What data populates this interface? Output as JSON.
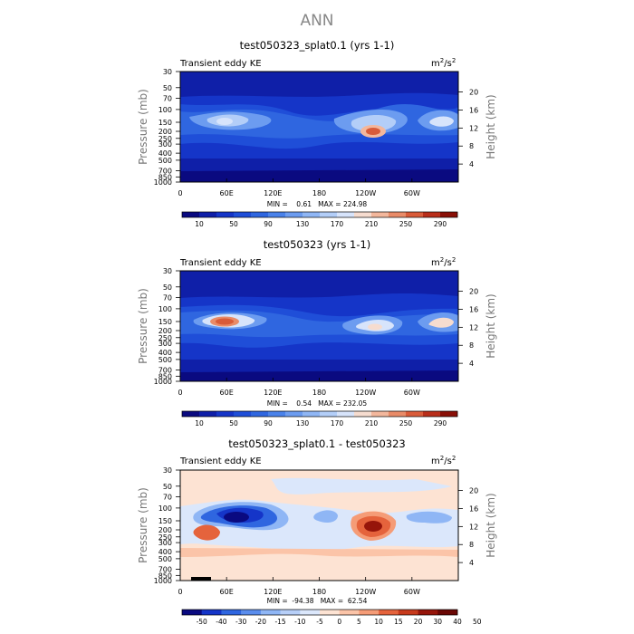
{
  "figure": {
    "title": "ANN"
  },
  "chart_data": [
    {
      "type": "heatmap",
      "title": "test050323_splat0.1 (yrs 1-1)",
      "left_label": "Transient eddy KE",
      "units": "m²/s²",
      "units_base": "m",
      "units_exp1": "2",
      "units_mid": "/s",
      "units_exp2": "2",
      "ylabel": "Pressure (mb)",
      "y2label": "Height (km)",
      "yticks": [
        "30",
        "50",
        "70",
        "100",
        "150",
        "200",
        "250",
        "300",
        "400",
        "500",
        "700",
        "850",
        "1000"
      ],
      "y2ticks": [
        "20",
        "16",
        "12",
        "8",
        "4"
      ],
      "xticks": [
        "0",
        "60E",
        "120E",
        "180",
        "120W",
        "60W"
      ],
      "stats": "MIN =    0.61   MAX = 224.98",
      "min": 0.61,
      "max": 224.98,
      "colorbar": [
        "10",
        "50",
        "90",
        "130",
        "170",
        "210",
        "250",
        "290"
      ],
      "features": [
        {
          "lon": 60,
          "p": 150,
          "value": 150
        },
        {
          "lon": 240,
          "p": 200,
          "value": 210
        },
        {
          "lon": 330,
          "p": 150,
          "value": 160
        }
      ]
    },
    {
      "type": "heatmap",
      "title": "test050323 (yrs 1-1)",
      "left_label": "Transient eddy KE",
      "units": "m²/s²",
      "units_base": "m",
      "units_exp1": "2",
      "units_mid": "/s",
      "units_exp2": "2",
      "ylabel": "Pressure (mb)",
      "y2label": "Height (km)",
      "yticks": [
        "30",
        "50",
        "70",
        "100",
        "150",
        "200",
        "250",
        "300",
        "400",
        "500",
        "700",
        "850",
        "1000"
      ],
      "y2ticks": [
        "20",
        "16",
        "12",
        "8",
        "4"
      ],
      "xticks": [
        "0",
        "60E",
        "120E",
        "180",
        "120W",
        "60W"
      ],
      "stats": "MIN =    0.54   MAX = 232.05",
      "min": 0.54,
      "max": 232.05,
      "colorbar": [
        "10",
        "50",
        "90",
        "130",
        "170",
        "210",
        "250",
        "290"
      ],
      "features": [
        {
          "lon": 55,
          "p": 150,
          "value": 230
        },
        {
          "lon": 240,
          "p": 200,
          "value": 170
        },
        {
          "lon": 330,
          "p": 150,
          "value": 170
        }
      ]
    },
    {
      "type": "heatmap",
      "title": "test050323_splat0.1 - test050323",
      "left_label": "Transient eddy KE",
      "units": "m²/s²",
      "units_base": "m",
      "units_exp1": "2",
      "units_mid": "/s",
      "units_exp2": "2",
      "ylabel": "Pressure (mb)",
      "y2label": "Height (km)",
      "yticks": [
        "30",
        "50",
        "70",
        "100",
        "150",
        "200",
        "250",
        "300",
        "400",
        "500",
        "700",
        "850",
        "1000"
      ],
      "y2ticks": [
        "20",
        "16",
        "12",
        "8",
        "4"
      ],
      "xticks": [
        "0",
        "60E",
        "120E",
        "180",
        "120W",
        "60W"
      ],
      "stats": "MIN =  -94.38   MAX =  62.54",
      "min": -94.38,
      "max": 62.54,
      "colorbar": [
        "-50",
        "-40",
        "-30",
        "-20",
        "-15",
        "-10",
        "-5",
        "0",
        "5",
        "10",
        "15",
        "20",
        "30",
        "40",
        "50"
      ],
      "features": [
        {
          "lon": 60,
          "p": 150,
          "value": -94
        },
        {
          "lon": 240,
          "p": 200,
          "value": 62
        },
        {
          "lon": 25,
          "p": 250,
          "value": 25
        }
      ]
    }
  ],
  "colors": {
    "absolute": [
      "#0a0a80",
      "#0f1fa8",
      "#1535c8",
      "#1f4ed8",
      "#2f66e0",
      "#4a82ea",
      "#6c9cf0",
      "#8fb6f5",
      "#b3cef8",
      "#d7e4fb",
      "#f6dccf",
      "#f3b79c",
      "#e98b68",
      "#d95b39",
      "#b92e1a",
      "#8a0f07"
    ],
    "difference": [
      "#0a0a80",
      "#1535c8",
      "#2f66e0",
      "#5a8ded",
      "#8fb6f5",
      "#b7cff8",
      "#dbe7fb",
      "#fde3d3",
      "#fbc4a8",
      "#f59c77",
      "#e5633c",
      "#c73a1c",
      "#96150a",
      "#6a0704"
    ]
  }
}
